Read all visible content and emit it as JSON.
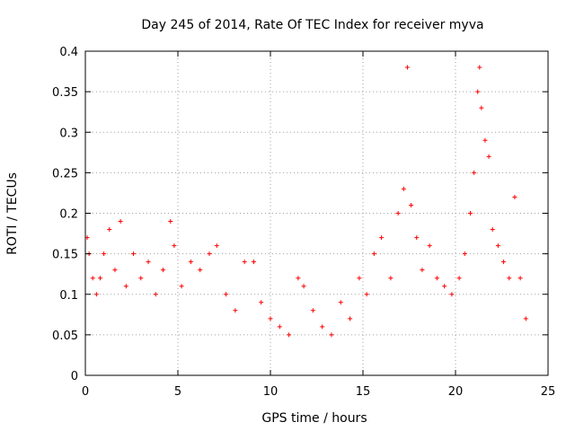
{
  "chart_data": {
    "type": "scatter",
    "title": "Day 245 of 2014, Rate Of TEC Index for receiver myva",
    "xlabel": "GPS time / hours",
    "ylabel": "ROTI / TECUs",
    "xlim": [
      0,
      25
    ],
    "ylim": [
      0,
      0.4
    ],
    "xticks": [
      "0",
      "5",
      "10",
      "15",
      "20",
      "25"
    ],
    "yticks": [
      "0",
      "0.05",
      "0.1",
      "0.15",
      "0.2",
      "0.25",
      "0.3",
      "0.35",
      "0.4"
    ],
    "grid": true,
    "marker": "plus",
    "color": "#ff0000",
    "series": [
      {
        "x": [
          0.1,
          0.2,
          0.4,
          0.6,
          0.8,
          1.0,
          1.3,
          1.6,
          1.9,
          2.2,
          2.6,
          3.0,
          3.4,
          3.8,
          4.2,
          4.6,
          4.8,
          5.2,
          5.7,
          6.2,
          6.7,
          7.1,
          7.6,
          8.1,
          8.6,
          9.1,
          9.5,
          10.0,
          10.5,
          11.0,
          11.5,
          11.8,
          12.3,
          12.8,
          13.3,
          13.8,
          14.3,
          14.8,
          15.2,
          15.6,
          16.0,
          16.5,
          16.9,
          17.2,
          17.4,
          17.6,
          17.9,
          18.2,
          18.6,
          19.0,
          19.4,
          19.8,
          20.2,
          20.5,
          20.8,
          21.0,
          21.2,
          21.3,
          21.4,
          21.6,
          21.8,
          22.0,
          22.3,
          22.6,
          22.9,
          23.2,
          23.5,
          23.8
        ],
        "y": [
          0.17,
          0.15,
          0.12,
          0.1,
          0.12,
          0.15,
          0.18,
          0.13,
          0.19,
          0.11,
          0.15,
          0.12,
          0.14,
          0.1,
          0.13,
          0.19,
          0.16,
          0.11,
          0.14,
          0.13,
          0.15,
          0.16,
          0.1,
          0.08,
          0.14,
          0.14,
          0.09,
          0.07,
          0.06,
          0.05,
          0.12,
          0.11,
          0.08,
          0.06,
          0.05,
          0.09,
          0.07,
          0.12,
          0.1,
          0.15,
          0.17,
          0.12,
          0.2,
          0.23,
          0.38,
          0.21,
          0.17,
          0.13,
          0.16,
          0.12,
          0.11,
          0.1,
          0.12,
          0.15,
          0.2,
          0.25,
          0.35,
          0.38,
          0.33,
          0.29,
          0.27,
          0.18,
          0.16,
          0.14,
          0.12,
          0.22,
          0.12,
          0.07
        ]
      }
    ]
  }
}
